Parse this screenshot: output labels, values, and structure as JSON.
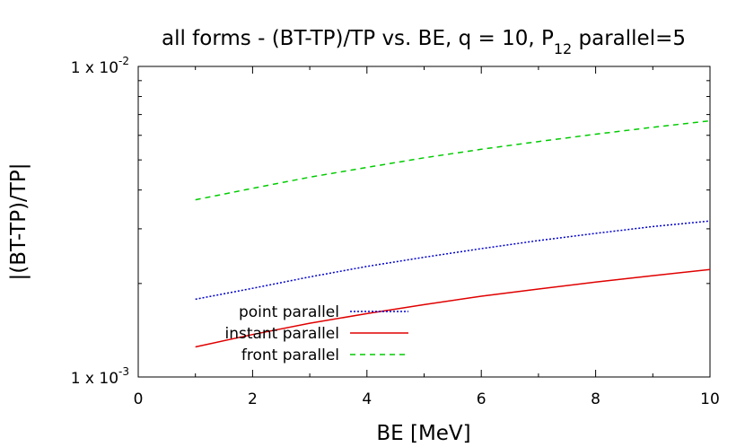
{
  "chart_data": {
    "type": "line",
    "title": "all forms - (BT-TP)/TP vs. BE, q = 10, P",
    "title_subscript": "12",
    "title_suffix": " parallel=5",
    "xlabel": "BE [MeV]",
    "ylabel": "|(BT-TP)/TP|",
    "xlim": [
      0,
      10
    ],
    "ylim": [
      0.001,
      0.01
    ],
    "yscale": "log",
    "xticks": [
      "0",
      "2",
      "4",
      "6",
      "8",
      "10"
    ],
    "yticks": [
      {
        "value": 0.001,
        "base": "1 x 10",
        "exp": "-3"
      },
      {
        "value": 0.01,
        "base": "1 x 10",
        "exp": "-2"
      }
    ],
    "grid": false,
    "legend_position": "bottom-left",
    "series": [
      {
        "name": "point parallel",
        "color": "#0000cc",
        "dash": "dotted",
        "x": [
          1,
          2,
          3,
          4,
          5,
          6,
          7,
          8,
          9,
          10
        ],
        "y": [
          0.00178,
          0.00193,
          0.0021,
          0.00227,
          0.00243,
          0.00259,
          0.00275,
          0.0029,
          0.00305,
          0.00318
        ]
      },
      {
        "name": "instant parallel",
        "color": "#e00000",
        "dash": "solid",
        "x": [
          1,
          2,
          3,
          4,
          5,
          6,
          7,
          8,
          9,
          10
        ],
        "y": [
          0.00125,
          0.00137,
          0.00149,
          0.0016,
          0.00171,
          0.00182,
          0.00192,
          0.00202,
          0.00212,
          0.00222
        ]
      },
      {
        "name": "front parallel",
        "color": "#00cc00",
        "dash": "dashed",
        "x": [
          1,
          2,
          3,
          4,
          5,
          6,
          7,
          8,
          9,
          10
        ],
        "y": [
          0.00372,
          0.00405,
          0.0044,
          0.00473,
          0.00508,
          0.00541,
          0.00573,
          0.00605,
          0.00637,
          0.00668
        ]
      }
    ]
  }
}
